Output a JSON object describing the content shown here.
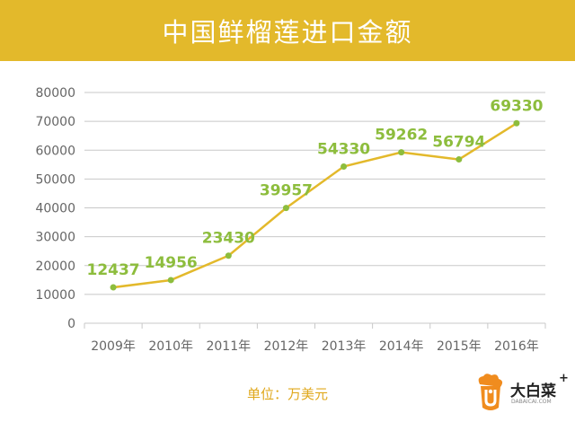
{
  "header": {
    "title": "中国鲜榴莲进口金额"
  },
  "footer": {
    "unit_note": "单位：万美元"
  },
  "logo": {
    "name": "大白菜",
    "plus": "+",
    "sub": "DABAICAI.COM",
    "icon": "cabbage-icon"
  },
  "colors": {
    "banner": "#e3b92b",
    "line": "#e3b92b",
    "point": "#8dbd3d",
    "data_label": "#8dbd3d",
    "grid": "#c8c8c8",
    "axis_text": "#666666",
    "unit_note": "#e0a81c"
  },
  "chart_data": {
    "type": "line",
    "title": "中国鲜榴莲进口金额",
    "categories": [
      "2009年",
      "2010年",
      "2011年",
      "2012年",
      "2013年",
      "2014年",
      "2015年",
      "2016年"
    ],
    "series": [
      {
        "values": [
          12437,
          14956,
          23430,
          39957,
          54330,
          59262,
          56794,
          69330
        ]
      }
    ],
    "ylim": [
      0,
      80000
    ],
    "yticks": [
      0,
      10000,
      20000,
      30000,
      40000,
      50000,
      60000,
      70000,
      80000
    ],
    "grid": true,
    "legend": "none",
    "xlabel": "",
    "ylabel": ""
  }
}
